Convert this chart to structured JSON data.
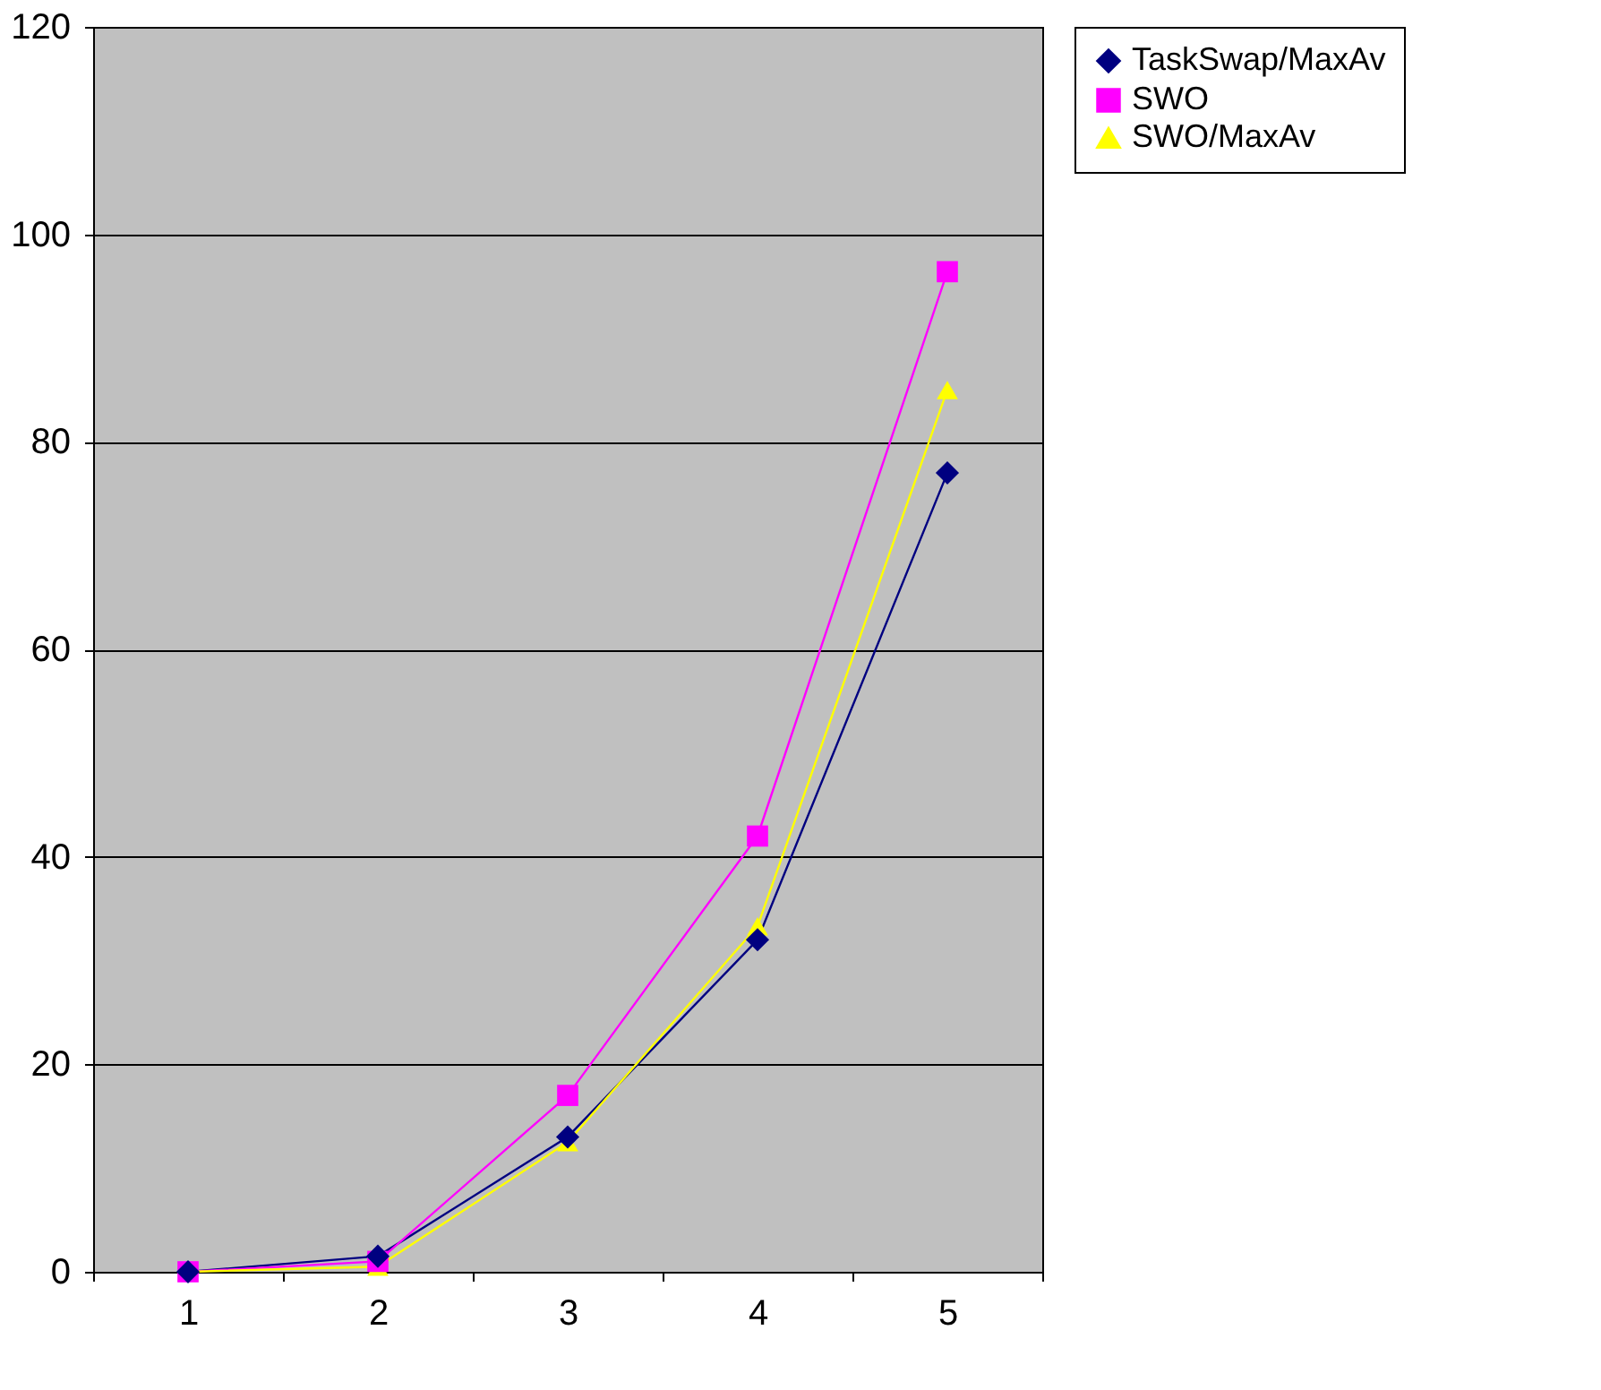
{
  "chart_data": {
    "type": "line",
    "categories": [
      "1",
      "2",
      "3",
      "4",
      "5"
    ],
    "series": [
      {
        "name": "TaskSwap/MaxAv",
        "color": "#000080",
        "marker": "diamond",
        "values": [
          0,
          1.5,
          13,
          32,
          77
        ]
      },
      {
        "name": "SWO",
        "color": "#ff00ff",
        "marker": "square",
        "values": [
          0,
          1,
          17,
          42,
          96.4
        ]
      },
      {
        "name": "SWO/MaxAv",
        "color": "#ffff00",
        "marker": "triangle",
        "values": [
          0,
          0.5,
          12.5,
          33.3,
          85
        ]
      }
    ],
    "ylim": [
      0,
      120
    ],
    "yticks": [
      0,
      20,
      40,
      60,
      80,
      100,
      120
    ],
    "grid": "y",
    "legend": "right"
  }
}
